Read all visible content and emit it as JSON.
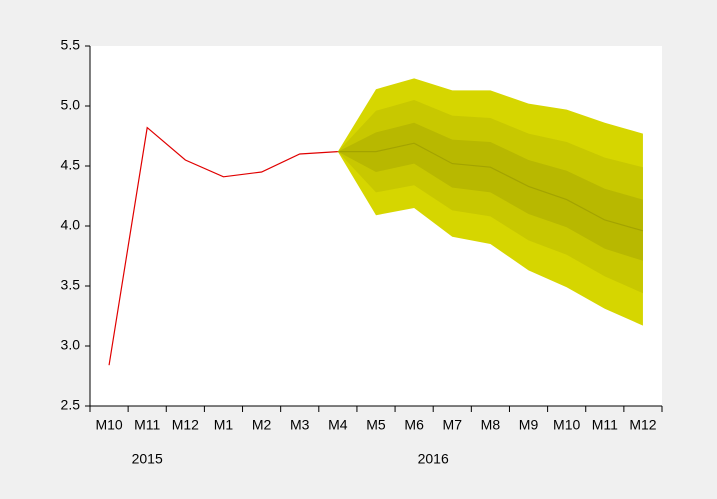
{
  "chart_data": {
    "type": "fan",
    "categories": [
      "M10",
      "M11",
      "M12",
      "M1",
      "M2",
      "M3",
      "M4",
      "M5",
      "M6",
      "M7",
      "M8",
      "M9",
      "M10",
      "M11",
      "M12"
    ],
    "group_labels": [
      "2015",
      "2016"
    ],
    "ylim": [
      2.5,
      5.5
    ],
    "yticks": [
      {
        "value": 2.5,
        "label": "2.5"
      },
      {
        "value": 3,
        "label": "3.0"
      },
      {
        "value": 3.5,
        "label": "3.5"
      },
      {
        "value": 4,
        "label": "4.0"
      },
      {
        "value": 4.5,
        "label": "4.5"
      },
      {
        "value": 5,
        "label": "5.0"
      },
      {
        "value": 5.5,
        "label": "5.5"
      }
    ],
    "bands": [
      {
        "color": "#d6d600",
        "upper": [
          null,
          null,
          null,
          null,
          null,
          null,
          4.62,
          5.14,
          5.23,
          5.13,
          5.13,
          5.02,
          4.97,
          4.86,
          4.77
        ],
        "lower": [
          null,
          null,
          null,
          null,
          null,
          null,
          4.62,
          4.09,
          4.15,
          3.91,
          3.85,
          3.63,
          3.49,
          3.31,
          3.17
        ]
      },
      {
        "color": "#c8c800",
        "upper": [
          null,
          null,
          null,
          null,
          null,
          null,
          4.62,
          4.96,
          5.05,
          4.92,
          4.9,
          4.77,
          4.7,
          4.57,
          4.49
        ],
        "lower": [
          null,
          null,
          null,
          null,
          null,
          null,
          4.62,
          4.28,
          4.34,
          4.13,
          4.08,
          3.88,
          3.76,
          3.58,
          3.44
        ]
      },
      {
        "color": "#b8b800",
        "upper": [
          null,
          null,
          null,
          null,
          null,
          null,
          4.62,
          4.78,
          4.86,
          4.72,
          4.7,
          4.55,
          4.46,
          4.31,
          4.22
        ],
        "lower": [
          null,
          null,
          null,
          null,
          null,
          null,
          4.62,
          4.45,
          4.52,
          4.32,
          4.28,
          4.1,
          3.99,
          3.81,
          3.71
        ]
      }
    ],
    "series": [
      {
        "color": "#e00000",
        "values": [
          2.84,
          4.82,
          4.55,
          4.41,
          4.45,
          4.6,
          4.62,
          null,
          null,
          null,
          null,
          null,
          null,
          null,
          null
        ]
      },
      {
        "color": "#a3a300",
        "values": [
          null,
          null,
          null,
          null,
          null,
          null,
          4.62,
          4.62,
          4.69,
          4.52,
          4.49,
          4.33,
          4.22,
          4.05,
          3.96
        ]
      }
    ]
  }
}
